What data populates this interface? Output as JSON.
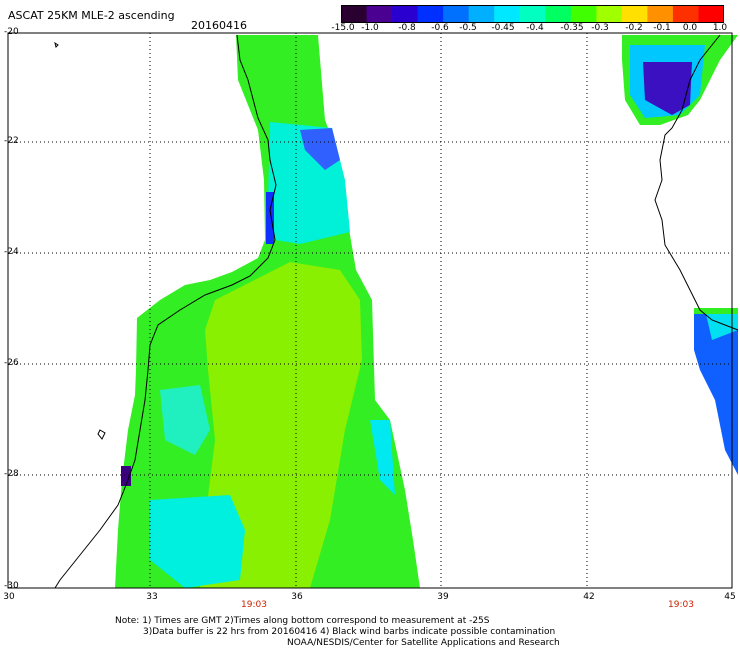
{
  "header": {
    "title": "ASCAT 25KM MLE-2 ascending",
    "date": "20160416"
  },
  "colorbar": {
    "labels": [
      "-15.0",
      "-1.0",
      "-0.8",
      "-0.6",
      "-0.5",
      "-0.45",
      "-0.4",
      "-0.35",
      "-0.3",
      "-0.2",
      "-0.1",
      "0.0",
      "1.0"
    ],
    "colors": [
      "#2a0030",
      "#4a0090",
      "#2a00d0",
      "#0030ff",
      "#0070ff",
      "#00b0ff",
      "#00e8ff",
      "#00ffc0",
      "#00ff60",
      "#40ff00",
      "#a0ff00",
      "#ffe000",
      "#ff9000",
      "#ff3000",
      "#ff0000"
    ]
  },
  "axes": {
    "y_ticks": [
      "-20",
      "-22",
      "-24",
      "-26",
      "-28",
      "-30"
    ],
    "x_ticks": [
      "30",
      "33",
      "36",
      "39",
      "42",
      "45"
    ]
  },
  "times": [
    "19:03",
    "19:03"
  ],
  "notes": [
    "Note: 1) Times are GMT 2)Times along bottom correspond to measurement at -25S",
    "3)Data buffer is 22 hrs from 20160416 4) Black wind barbs indicate possible contamination",
    "NOAA/NESDIS/Center for Satellite Applications and Research"
  ],
  "palette": {
    "green": "#33ee22",
    "lime": "#80f000",
    "cyan": "#00f0f0",
    "lightblue": "#00c0ff",
    "blue": "#0050ff",
    "darkblue": "#2020ff",
    "indigo": "#3a10c0",
    "purple": "#4a0080"
  }
}
